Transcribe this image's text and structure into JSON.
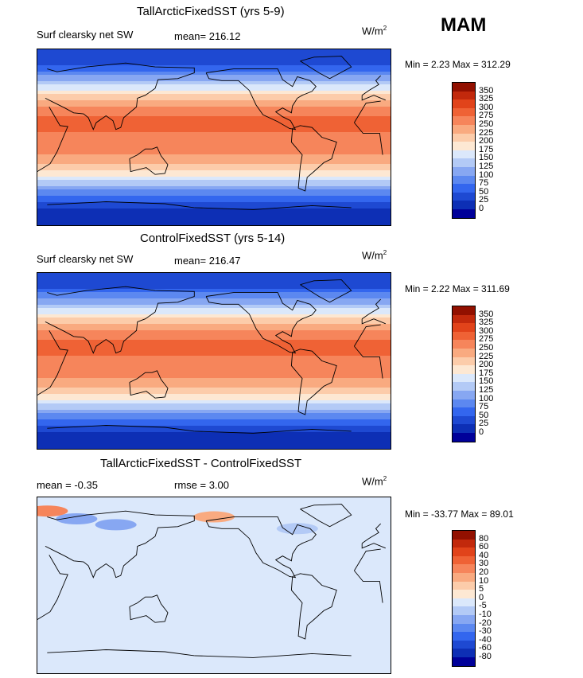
{
  "season": "MAM",
  "colors": {
    "abs_scale": [
      "#000099",
      "#0d2fb5",
      "#1e49d2",
      "#3366ee",
      "#5c88f0",
      "#87a7f2",
      "#b3caf6",
      "#dbe8fb",
      "#fde8d3",
      "#fcccaa",
      "#f9aa80",
      "#f6855b",
      "#ef6235",
      "#e1431a",
      "#c2290c",
      "#921000"
    ],
    "diff_scale": [
      "#000099",
      "#0d2fb5",
      "#1e49d2",
      "#3366ee",
      "#5c88f0",
      "#87a7f2",
      "#b3caf6",
      "#dbe8fb",
      "#fde8d3",
      "#fcccaa",
      "#f9aa80",
      "#f6855b",
      "#ef6235",
      "#e1431a",
      "#c2290c",
      "#921000"
    ]
  },
  "panels": [
    {
      "title": "TallArcticFixedSST (yrs 5-9)",
      "variable": "Surf clearsky net SW",
      "stat1": "mean= 216.12",
      "stat2": "",
      "units": "W/m",
      "units_sup": "2",
      "minmax": "Min =    2.23 Max = 312.29",
      "kind": "abs"
    },
    {
      "title": "ControlFixedSST (yrs 5-14)",
      "variable": "Surf clearsky net SW",
      "stat1": "mean= 216.47",
      "stat2": "",
      "units": "W/m",
      "units_sup": "2",
      "minmax": "Min =    2.22 Max = 311.69",
      "kind": "abs"
    },
    {
      "title": "TallArcticFixedSST - ControlFixedSST",
      "variable": "",
      "stat1": "mean =   -0.35",
      "stat2": "rmse =    3.00",
      "units": "W/m",
      "units_sup": "2",
      "minmax": "Min = -33.77 Max =  89.01",
      "kind": "diff"
    }
  ],
  "chart_data": [
    {
      "type": "heatmap",
      "title": "TallArcticFixedSST (yrs 5-9)",
      "subtitle": "Surf clearsky net SW",
      "mean": 216.12,
      "min": 2.23,
      "max": 312.29,
      "units": "W/m2",
      "legend_levels": [
        "350",
        "325",
        "300",
        "275",
        "250",
        "225",
        "200",
        "175",
        "150",
        "125",
        "100",
        "75",
        "50",
        "25",
        "0"
      ],
      "lat_bands": [
        {
          "lat": 80,
          "value": 30
        },
        {
          "lat": 60,
          "value": 110
        },
        {
          "lat": 45,
          "value": 200
        },
        {
          "lat": 30,
          "value": 260
        },
        {
          "lat": 15,
          "value": 285
        },
        {
          "lat": 0,
          "value": 270
        },
        {
          "lat": -15,
          "value": 262
        },
        {
          "lat": -30,
          "value": 210
        },
        {
          "lat": -45,
          "value": 150
        },
        {
          "lat": -60,
          "value": 70
        },
        {
          "lat": -75,
          "value": 15
        }
      ]
    },
    {
      "type": "heatmap",
      "title": "ControlFixedSST (yrs 5-14)",
      "subtitle": "Surf clearsky net SW",
      "mean": 216.47,
      "min": 2.22,
      "max": 311.69,
      "units": "W/m2",
      "legend_levels": [
        "350",
        "325",
        "300",
        "275",
        "250",
        "225",
        "200",
        "175",
        "150",
        "125",
        "100",
        "75",
        "50",
        "25",
        "0"
      ],
      "lat_bands": [
        {
          "lat": 80,
          "value": 30
        },
        {
          "lat": 60,
          "value": 112
        },
        {
          "lat": 45,
          "value": 200
        },
        {
          "lat": 30,
          "value": 260
        },
        {
          "lat": 15,
          "value": 285
        },
        {
          "lat": 0,
          "value": 270
        },
        {
          "lat": -15,
          "value": 262
        },
        {
          "lat": -30,
          "value": 210
        },
        {
          "lat": -45,
          "value": 150
        },
        {
          "lat": -60,
          "value": 70
        },
        {
          "lat": -75,
          "value": 15
        }
      ]
    },
    {
      "type": "heatmap",
      "title": "TallArcticFixedSST - ControlFixedSST",
      "mean": -0.35,
      "rmse": 3.0,
      "min": -33.77,
      "max": 89.01,
      "units": "W/m2",
      "legend_levels": [
        "80",
        "60",
        "40",
        "30",
        "20",
        "10",
        "5",
        "0",
        "-5",
        "-10",
        "-20",
        "-30",
        "-40",
        "-60",
        "-80"
      ],
      "anomalies": [
        {
          "lon": 60,
          "lat": 68,
          "value": -15
        },
        {
          "lon": 100,
          "lat": 62,
          "value": -12
        },
        {
          "lon": 285,
          "lat": 58,
          "value": -10
        },
        {
          "lon": 30,
          "lat": 76,
          "value": 25
        },
        {
          "lon": 200,
          "lat": 70,
          "value": 10
        }
      ]
    }
  ]
}
